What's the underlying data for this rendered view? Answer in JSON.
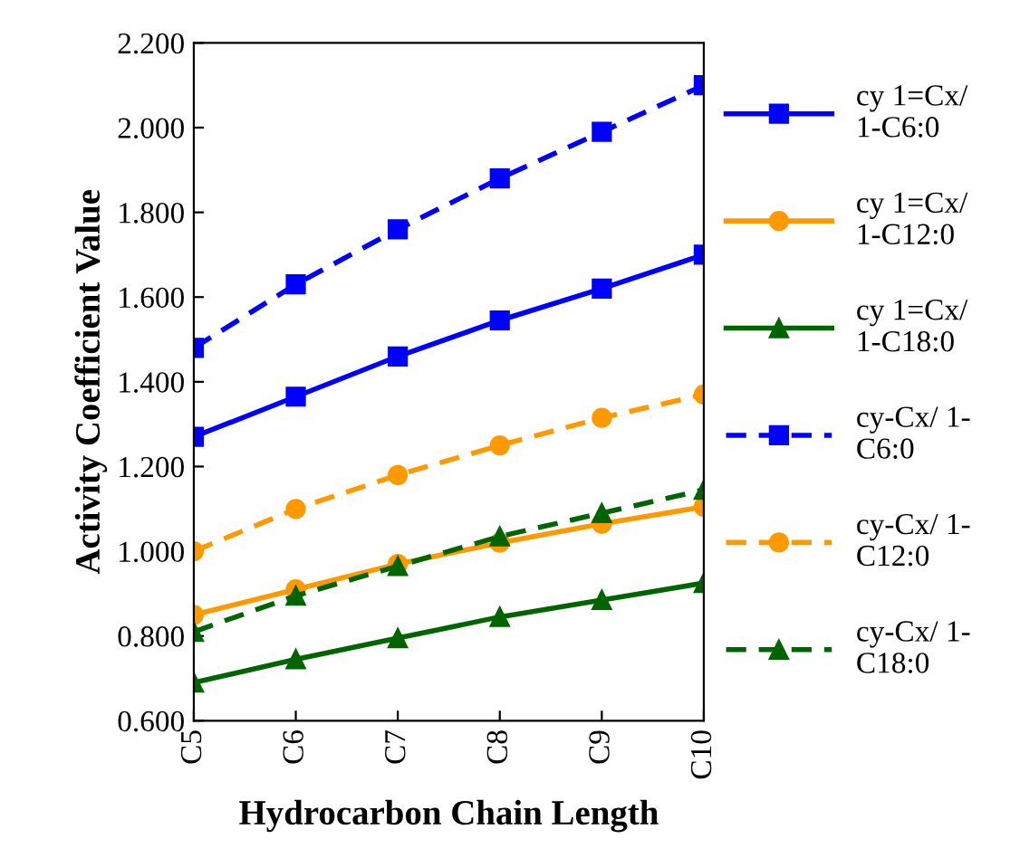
{
  "chart_data": {
    "type": "line",
    "xlabel": "Hydrocarbon Chain Length",
    "ylabel": "Activity Coefficient Value",
    "categories": [
      "C5",
      "C6",
      "C7",
      "C8",
      "C9",
      "C10"
    ],
    "ylim": [
      0.6,
      2.2
    ],
    "yticks": [
      {
        "value": 0.6,
        "label": "0.600"
      },
      {
        "value": 0.8,
        "label": "0.800"
      },
      {
        "value": 1.0,
        "label": "1.000"
      },
      {
        "value": 1.2,
        "label": "1.200"
      },
      {
        "value": 1.4,
        "label": "1.400"
      },
      {
        "value": 1.6,
        "label": "1.600"
      },
      {
        "value": 1.8,
        "label": "1.800"
      },
      {
        "value": 2.0,
        "label": "2.000"
      },
      {
        "value": 2.2,
        "label": "2.200"
      }
    ],
    "grid": false,
    "legend": "right",
    "series": [
      {
        "name": "cy 1=Cx/\n1-C6:0",
        "color": "#0000ff",
        "marker": "square",
        "line_style": "solid",
        "values": [
          1.27,
          1.365,
          1.46,
          1.545,
          1.62,
          1.7
        ]
      },
      {
        "name": "cy 1=Cx/\n1-C12:0",
        "color": "#ff9900",
        "marker": "circle",
        "line_style": "solid",
        "values": [
          0.85,
          0.91,
          0.97,
          1.02,
          1.065,
          1.105
        ]
      },
      {
        "name": "cy 1=Cx/\n1-C18:0",
        "color": "#006400",
        "marker": "triangle",
        "line_style": "solid",
        "values": [
          0.69,
          0.745,
          0.795,
          0.845,
          0.885,
          0.925
        ]
      },
      {
        "name": "cy-Cx/ 1-\nC6:0",
        "color": "#0000ff",
        "marker": "square",
        "line_style": "dashed",
        "values": [
          1.48,
          1.63,
          1.76,
          1.88,
          1.99,
          2.1
        ]
      },
      {
        "name": "cy-Cx/ 1-\nC12:0",
        "color": "#ff9900",
        "marker": "circle",
        "line_style": "dashed",
        "values": [
          1.0,
          1.1,
          1.18,
          1.25,
          1.315,
          1.37
        ]
      },
      {
        "name": "cy-Cx/ 1-\nC18:0",
        "color": "#006400",
        "marker": "triangle",
        "line_style": "dashed",
        "values": [
          0.81,
          0.895,
          0.965,
          1.035,
          1.09,
          1.145
        ]
      }
    ]
  }
}
